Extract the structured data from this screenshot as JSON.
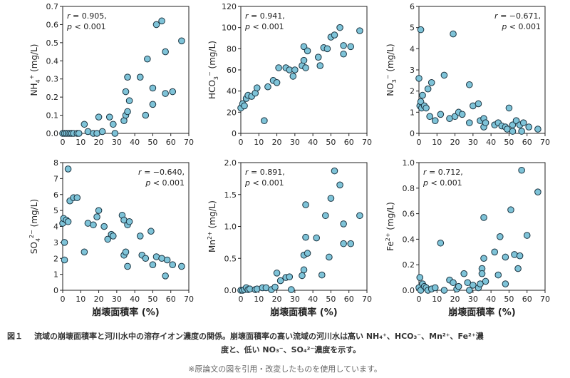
{
  "chart_data": [
    {
      "type": "scatter",
      "ylabel": "NH4+ (mg/L)",
      "xlabel": "",
      "xlim": [
        0,
        70
      ],
      "ylim": [
        0,
        0.7
      ],
      "xticks": [
        "0",
        "10",
        "20",
        "30",
        "40",
        "50",
        "60",
        "70"
      ],
      "yticks": [
        "0.0",
        "0.1",
        "0.2",
        "0.3",
        "0.4",
        "0.5",
        "0.6",
        "0.7"
      ],
      "stat": {
        "r": "0.905",
        "p": "0.001",
        "corner": "top-left"
      },
      "points": [
        [
          0,
          0
        ],
        [
          1,
          0
        ],
        [
          2,
          0
        ],
        [
          3,
          0
        ],
        [
          4,
          0
        ],
        [
          5,
          0
        ],
        [
          6,
          0
        ],
        [
          8,
          0
        ],
        [
          9,
          0
        ],
        [
          12,
          0.05
        ],
        [
          14,
          0.01
        ],
        [
          17,
          0
        ],
        [
          19,
          0
        ],
        [
          20,
          0.09
        ],
        [
          22,
          0.01
        ],
        [
          26,
          0.09
        ],
        [
          28,
          0.05
        ],
        [
          29,
          0
        ],
        [
          34,
          0.07
        ],
        [
          35,
          0.23
        ],
        [
          35,
          0.1
        ],
        [
          36,
          0.31
        ],
        [
          36,
          0.12
        ],
        [
          37,
          0.18
        ],
        [
          43,
          0.31
        ],
        [
          46,
          0.1
        ],
        [
          47,
          0.41
        ],
        [
          50,
          0.25
        ],
        [
          50,
          0.16
        ],
        [
          52,
          0.6
        ],
        [
          55,
          0.62
        ],
        [
          57,
          0.45
        ],
        [
          57,
          0.22
        ],
        [
          61,
          0.23
        ],
        [
          66,
          0.51
        ]
      ]
    },
    {
      "type": "scatter",
      "ylabel": "HCO3− (mg/L)",
      "xlabel": "",
      "xlim": [
        0,
        70
      ],
      "ylim": [
        0,
        120
      ],
      "xticks": [
        "0",
        "10",
        "20",
        "30",
        "40",
        "50",
        "60",
        "70"
      ],
      "yticks": [
        "0",
        "20",
        "40",
        "60",
        "80",
        "100",
        "120"
      ],
      "stat": {
        "r": "0.941",
        "p": "0.001",
        "corner": "top-left"
      },
      "points": [
        [
          0,
          24
        ],
        [
          1,
          28
        ],
        [
          2,
          26
        ],
        [
          3,
          33
        ],
        [
          4,
          36
        ],
        [
          6,
          35
        ],
        [
          8,
          38
        ],
        [
          9,
          43
        ],
        [
          13,
          12
        ],
        [
          15,
          44
        ],
        [
          18,
          50
        ],
        [
          20,
          48
        ],
        [
          21,
          62
        ],
        [
          25,
          62
        ],
        [
          27,
          60
        ],
        [
          29,
          54
        ],
        [
          30,
          60
        ],
        [
          34,
          64
        ],
        [
          35,
          69
        ],
        [
          35,
          82
        ],
        [
          36,
          62
        ],
        [
          37,
          78
        ],
        [
          43,
          72
        ],
        [
          44,
          64
        ],
        [
          46,
          81
        ],
        [
          48,
          80
        ],
        [
          50,
          91
        ],
        [
          52,
          93
        ],
        [
          55,
          100
        ],
        [
          57,
          83
        ],
        [
          57,
          75
        ],
        [
          61,
          82
        ],
        [
          66,
          97
        ]
      ]
    },
    {
      "type": "scatter",
      "ylabel": "NO3− (mg/L)",
      "xlabel": "",
      "xlim": [
        0,
        70
      ],
      "ylim": [
        0,
        6
      ],
      "xticks": [
        "0",
        "10",
        "20",
        "30",
        "40",
        "50",
        "60",
        "70"
      ],
      "yticks": [
        "0",
        "1",
        "2",
        "3",
        "4",
        "5",
        "6"
      ],
      "stat": {
        "r": "−0.671",
        "p": "0.001",
        "corner": "top-right"
      },
      "points": [
        [
          0,
          2.6
        ],
        [
          0.5,
          1.3
        ],
        [
          1,
          1.5
        ],
        [
          1,
          4.9
        ],
        [
          1.5,
          1.2
        ],
        [
          2,
          1.8
        ],
        [
          3,
          1.3
        ],
        [
          4,
          1.2
        ],
        [
          5,
          2.1
        ],
        [
          6,
          0.8
        ],
        [
          7,
          2.4
        ],
        [
          9,
          0.6
        ],
        [
          12,
          0.9
        ],
        [
          14,
          2.75
        ],
        [
          17,
          0.7
        ],
        [
          19,
          4.7
        ],
        [
          20,
          0.8
        ],
        [
          22,
          1.0
        ],
        [
          24,
          0.9
        ],
        [
          28,
          2.3
        ],
        [
          28,
          0.5
        ],
        [
          30,
          1.3
        ],
        [
          33,
          1.4
        ],
        [
          34,
          0.6
        ],
        [
          36,
          0.3
        ],
        [
          36,
          0.7
        ],
        [
          37,
          0.5
        ],
        [
          42,
          0.4
        ],
        [
          44,
          0.5
        ],
        [
          46,
          0.35
        ],
        [
          48,
          0.3
        ],
        [
          49,
          0.2
        ],
        [
          50,
          1.2
        ],
        [
          52,
          0.4
        ],
        [
          52,
          0.1
        ],
        [
          54,
          0.6
        ],
        [
          56,
          0.4
        ],
        [
          57,
          0.1
        ],
        [
          58,
          0.5
        ],
        [
          61,
          0.3
        ],
        [
          66,
          0.2
        ]
      ]
    },
    {
      "type": "scatter",
      "ylabel": "SO42− (mg/L)",
      "xlabel": "崩壊面積率 (%)",
      "xlim": [
        0,
        70
      ],
      "ylim": [
        0,
        8
      ],
      "xticks": [
        "0",
        "10",
        "20",
        "30",
        "40",
        "50",
        "60",
        "70"
      ],
      "yticks": [
        "0",
        "1",
        "2",
        "3",
        "4",
        "5",
        "6",
        "7",
        "8"
      ],
      "stat": {
        "r": "−0.640",
        "p": "0.001",
        "corner": "top-right"
      },
      "points": [
        [
          0,
          4.2
        ],
        [
          0.5,
          4.5
        ],
        [
          1,
          1.9
        ],
        [
          1,
          3.0
        ],
        [
          2,
          4.4
        ],
        [
          3,
          7.6
        ],
        [
          3,
          4.3
        ],
        [
          4,
          5.6
        ],
        [
          6,
          5.8
        ],
        [
          8,
          5.8
        ],
        [
          12,
          2.4
        ],
        [
          14,
          4.2
        ],
        [
          17,
          4.1
        ],
        [
          19,
          4.6
        ],
        [
          20,
          5.0
        ],
        [
          23,
          4.0
        ],
        [
          25,
          3.2
        ],
        [
          27,
          3.5
        ],
        [
          28,
          3.4
        ],
        [
          33,
          4.7
        ],
        [
          34,
          4.4
        ],
        [
          34,
          2.2
        ],
        [
          35,
          2.4
        ],
        [
          36,
          1.5
        ],
        [
          36,
          4.1
        ],
        [
          37,
          4.3
        ],
        [
          43,
          3.4
        ],
        [
          44,
          2.2
        ],
        [
          46,
          2.0
        ],
        [
          49,
          3.7
        ],
        [
          50,
          1.6
        ],
        [
          52,
          2.1
        ],
        [
          55,
          2.0
        ],
        [
          57,
          0.9
        ],
        [
          58,
          1.9
        ],
        [
          61,
          1.6
        ],
        [
          66,
          1.5
        ]
      ]
    },
    {
      "type": "scatter",
      "ylabel": "Mn2+ (mg/L)",
      "xlabel": "崩壊面積率 (%)",
      "xlim": [
        0,
        70
      ],
      "ylim": [
        0,
        2.0
      ],
      "xticks": [
        "0",
        "10",
        "20",
        "30",
        "40",
        "50",
        "60",
        "70"
      ],
      "yticks": [
        "0.0",
        "0.5",
        "1.0",
        "1.5",
        "2.0"
      ],
      "stat": {
        "r": "0.891",
        "p": "0.001",
        "corner": "top-left"
      },
      "points": [
        [
          0,
          0
        ],
        [
          1,
          0
        ],
        [
          2,
          0.01
        ],
        [
          3,
          0.04
        ],
        [
          4,
          0.01
        ],
        [
          5,
          0.02
        ],
        [
          8,
          0.01
        ],
        [
          9,
          0.02
        ],
        [
          12,
          0.04
        ],
        [
          14,
          0.04
        ],
        [
          17,
          0.01
        ],
        [
          19,
          0.05
        ],
        [
          20,
          0.27
        ],
        [
          22,
          0.15
        ],
        [
          25,
          0.2
        ],
        [
          27,
          0.21
        ],
        [
          28,
          0.01
        ],
        [
          34,
          0.23
        ],
        [
          35,
          0.55
        ],
        [
          35,
          0.32
        ],
        [
          36,
          1.34
        ],
        [
          36,
          0.83
        ],
        [
          37,
          0.58
        ],
        [
          42,
          0.82
        ],
        [
          45,
          0.24
        ],
        [
          47,
          1.17
        ],
        [
          49,
          0.52
        ],
        [
          50,
          1.44
        ],
        [
          52,
          1.87
        ],
        [
          55,
          1.65
        ],
        [
          57,
          1.04
        ],
        [
          57,
          0.73
        ],
        [
          61,
          0.73
        ],
        [
          66,
          1.17
        ]
      ]
    },
    {
      "type": "scatter",
      "ylabel": "Fe2+ (mg/L)",
      "xlabel": "崩壊面積率 (%)",
      "xlim": [
        0,
        70
      ],
      "ylim": [
        0,
        1.0
      ],
      "xticks": [
        "0",
        "10",
        "20",
        "30",
        "40",
        "50",
        "60",
        "70"
      ],
      "yticks": [
        "0.0",
        "0.2",
        "0.4",
        "0.6",
        "0.8",
        "1.0"
      ],
      "stat": {
        "r": "0.712",
        "p": "0.001",
        "corner": "top-left"
      },
      "points": [
        [
          0,
          0.02
        ],
        [
          0.5,
          0.1
        ],
        [
          1,
          0
        ],
        [
          2,
          0.05
        ],
        [
          3,
          0.03
        ],
        [
          4,
          0.02
        ],
        [
          5,
          0.0
        ],
        [
          7,
          0.01
        ],
        [
          9,
          0.02
        ],
        [
          12,
          0.37
        ],
        [
          14,
          0.0
        ],
        [
          17,
          0.08
        ],
        [
          19,
          0.06
        ],
        [
          21,
          0.01
        ],
        [
          22,
          0.03
        ],
        [
          25,
          0.13
        ],
        [
          27,
          0.06
        ],
        [
          28,
          0.0
        ],
        [
          30,
          0.04
        ],
        [
          33,
          0.02
        ],
        [
          34,
          0.05
        ],
        [
          35,
          0.17
        ],
        [
          35,
          0.13
        ],
        [
          36,
          0.57
        ],
        [
          36,
          0.25
        ],
        [
          37,
          0.07
        ],
        [
          42,
          0.3
        ],
        [
          44,
          0.12
        ],
        [
          45,
          0.42
        ],
        [
          48,
          0.26
        ],
        [
          48,
          0.05
        ],
        [
          51,
          0.63
        ],
        [
          53,
          0.28
        ],
        [
          55,
          0.17
        ],
        [
          56,
          0.27
        ],
        [
          57,
          0.94
        ],
        [
          60,
          0.43
        ],
        [
          66,
          0.77
        ]
      ]
    }
  ],
  "caption": {
    "number": "図１",
    "line1": "流域の崩壊面積率と河川水中の溶存イオン濃度の関係。崩壊面積率の高い流域の河川水は高い NH₄⁺、HCO₃⁻、Mn²⁺、Fe²⁺濃",
    "line2": "度と、低い NO₃⁻、SO₄²⁻濃度を示す。"
  },
  "note": "※原論文の図を引用・改変したものを使用しています。",
  "colors": {
    "marker_fill": "#7ec3d8",
    "marker_stroke": "#1a3340"
  }
}
